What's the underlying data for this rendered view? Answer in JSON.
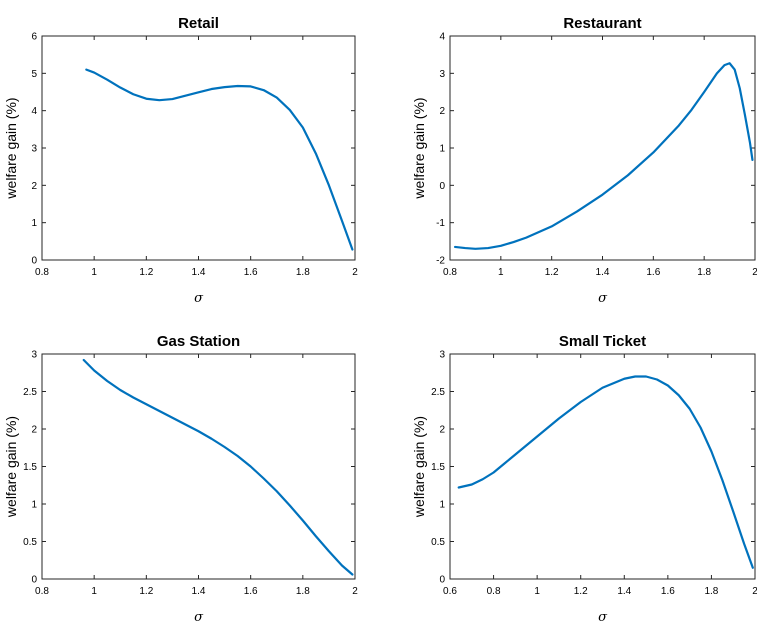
{
  "chart_data": [
    {
      "type": "line",
      "title": "Retail",
      "xlabel": "σ",
      "ylabel": "welfare gain (%)",
      "xlim": [
        0.8,
        2
      ],
      "ylim": [
        0,
        6
      ],
      "xticks": [
        0.8,
        1,
        1.2,
        1.4,
        1.6,
        1.8,
        2
      ],
      "yticks": [
        0,
        1,
        2,
        3,
        4,
        5,
        6
      ],
      "grid": false,
      "color": "#0072bd",
      "series": [
        {
          "x": [
            0.97,
            1.0,
            1.05,
            1.1,
            1.15,
            1.2,
            1.25,
            1.3,
            1.35,
            1.4,
            1.45,
            1.5,
            1.55,
            1.6,
            1.65,
            1.7,
            1.75,
            1.8,
            1.85,
            1.9,
            1.95,
            1.99
          ],
          "y": [
            5.1,
            5.02,
            4.83,
            4.62,
            4.44,
            4.32,
            4.28,
            4.31,
            4.4,
            4.49,
            4.58,
            4.63,
            4.66,
            4.65,
            4.55,
            4.35,
            4.02,
            3.55,
            2.85,
            2.0,
            1.05,
            0.28
          ]
        }
      ]
    },
    {
      "type": "line",
      "title": "Restaurant",
      "xlabel": "σ",
      "ylabel": "welfare gain (%)",
      "xlim": [
        0.8,
        2
      ],
      "ylim": [
        -2,
        4
      ],
      "xticks": [
        0.8,
        1,
        1.2,
        1.4,
        1.6,
        1.8,
        2
      ],
      "yticks": [
        -2,
        -1,
        0,
        1,
        2,
        3,
        4
      ],
      "grid": false,
      "color": "#0072bd",
      "series": [
        {
          "x": [
            0.82,
            0.86,
            0.9,
            0.95,
            1.0,
            1.05,
            1.1,
            1.2,
            1.3,
            1.4,
            1.5,
            1.6,
            1.7,
            1.75,
            1.8,
            1.85,
            1.88,
            1.9,
            1.92,
            1.94,
            1.96,
            1.98,
            1.99
          ],
          "y": [
            -1.65,
            -1.68,
            -1.7,
            -1.68,
            -1.62,
            -1.52,
            -1.4,
            -1.1,
            -0.7,
            -0.25,
            0.27,
            0.88,
            1.6,
            2.02,
            2.5,
            3.0,
            3.22,
            3.27,
            3.1,
            2.6,
            1.9,
            1.15,
            0.68
          ]
        }
      ]
    },
    {
      "type": "line",
      "title": "Gas Station",
      "xlabel": "σ",
      "ylabel": "welfare gain (%)",
      "xlim": [
        0.8,
        2
      ],
      "ylim": [
        0,
        3
      ],
      "xticks": [
        0.8,
        1,
        1.2,
        1.4,
        1.6,
        1.8,
        2
      ],
      "yticks": [
        0,
        0.5,
        1,
        1.5,
        2,
        2.5,
        3
      ],
      "grid": false,
      "color": "#0072bd",
      "series": [
        {
          "x": [
            0.96,
            1.0,
            1.05,
            1.1,
            1.15,
            1.2,
            1.25,
            1.3,
            1.35,
            1.4,
            1.45,
            1.5,
            1.55,
            1.6,
            1.65,
            1.7,
            1.75,
            1.8,
            1.85,
            1.9,
            1.95,
            1.99
          ],
          "y": [
            2.92,
            2.78,
            2.64,
            2.52,
            2.42,
            2.33,
            2.24,
            2.15,
            2.06,
            1.97,
            1.87,
            1.76,
            1.64,
            1.5,
            1.34,
            1.17,
            0.98,
            0.78,
            0.57,
            0.37,
            0.18,
            0.06
          ]
        }
      ]
    },
    {
      "type": "line",
      "title": "Small Ticket",
      "xlabel": "σ",
      "ylabel": "welfare gain (%)",
      "xlim": [
        0.6,
        2
      ],
      "ylim": [
        0,
        3
      ],
      "xticks": [
        0.6,
        0.8,
        1,
        1.2,
        1.4,
        1.6,
        1.8,
        2
      ],
      "yticks": [
        0,
        0.5,
        1,
        1.5,
        2,
        2.5,
        3
      ],
      "grid": false,
      "color": "#0072bd",
      "series": [
        {
          "x": [
            0.64,
            0.7,
            0.75,
            0.8,
            0.85,
            0.9,
            1.0,
            1.1,
            1.2,
            1.3,
            1.4,
            1.45,
            1.5,
            1.55,
            1.6,
            1.65,
            1.7,
            1.75,
            1.8,
            1.85,
            1.9,
            1.95,
            1.99
          ],
          "y": [
            1.22,
            1.26,
            1.33,
            1.42,
            1.54,
            1.66,
            1.9,
            2.14,
            2.36,
            2.55,
            2.67,
            2.7,
            2.7,
            2.66,
            2.58,
            2.45,
            2.27,
            2.02,
            1.7,
            1.32,
            0.9,
            0.47,
            0.15
          ]
        }
      ]
    }
  ]
}
